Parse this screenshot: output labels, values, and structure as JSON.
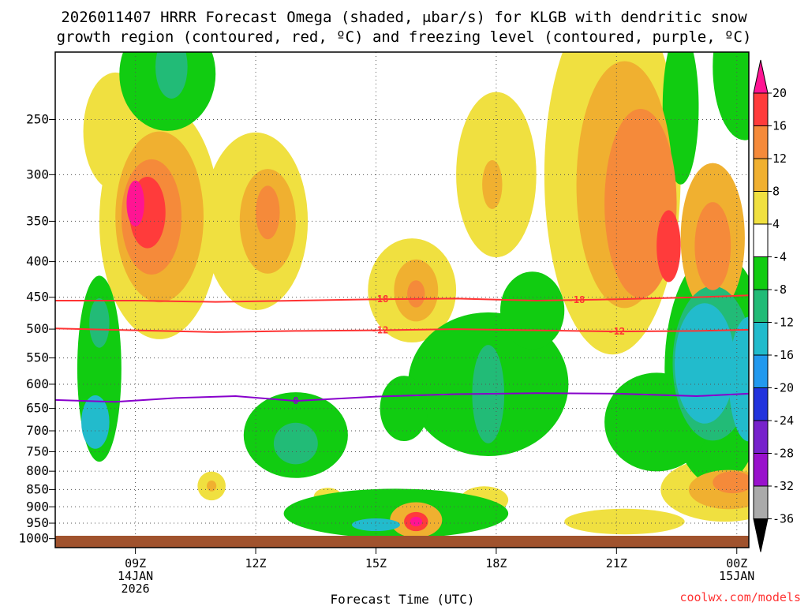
{
  "chart_data": {
    "type": "heatmap",
    "title_line1": "2026011407 HRRR Forecast Omega (shaded, μbar/s) for KLGB with dendritic snow",
    "title_line2": "growth region (contoured, red, ºC) and freezing level (contoured, purple, ºC)",
    "xlabel": "Forecast Time (UTC)",
    "ylabel": "",
    "credit": "coolwx.com/models",
    "x_range_hours": [
      7.0,
      24.3
    ],
    "y_range_hpa": [
      200,
      1030
    ],
    "y_ticks": [
      {
        "value": 250,
        "label": "250"
      },
      {
        "value": 300,
        "label": "300"
      },
      {
        "value": 350,
        "label": "350"
      },
      {
        "value": 400,
        "label": "400"
      },
      {
        "value": 450,
        "label": "450"
      },
      {
        "value": 500,
        "label": "500"
      },
      {
        "value": 550,
        "label": "550"
      },
      {
        "value": 600,
        "label": "600"
      },
      {
        "value": 650,
        "label": "650"
      },
      {
        "value": 700,
        "label": "700"
      },
      {
        "value": 750,
        "label": "750"
      },
      {
        "value": 800,
        "label": "800"
      },
      {
        "value": 850,
        "label": "850"
      },
      {
        "value": 900,
        "label": "900"
      },
      {
        "value": 950,
        "label": "950"
      },
      {
        "value": 1000,
        "label": "1000"
      }
    ],
    "x_ticks": [
      {
        "hour": 9,
        "lines": [
          "09Z",
          "14JAN",
          "2026"
        ]
      },
      {
        "hour": 12,
        "lines": [
          "12Z"
        ]
      },
      {
        "hour": 15,
        "lines": [
          "15Z"
        ]
      },
      {
        "hour": 18,
        "lines": [
          "18Z"
        ]
      },
      {
        "hour": 21,
        "lines": [
          "21Z"
        ]
      },
      {
        "hour": 24,
        "lines": [
          "00Z",
          "15JAN"
        ]
      }
    ],
    "colorbar": {
      "levels": [
        20,
        16,
        12,
        8,
        4,
        -4,
        -8,
        -12,
        -16,
        -20,
        -24,
        -28,
        -32,
        -36
      ],
      "colors": [
        "#ff1493",
        "#ff3b3b",
        "#f58a3a",
        "#f0b030",
        "#f0e040",
        "#ffffff",
        "#11cc11",
        "#22bb77",
        "#22bbcc",
        "#2299ee",
        "#2233dd",
        "#7722cc",
        "#9911cc",
        "#aaaaaa",
        "#000000"
      ]
    },
    "blobs": [
      {
        "h": 9.6,
        "p": 350,
        "rx": 1.5,
        "ry": 130,
        "v": 6
      },
      {
        "h": 9.6,
        "p": 345,
        "rx": 1.1,
        "ry": 95,
        "v": 9
      },
      {
        "h": 9.4,
        "p": 345,
        "rx": 0.75,
        "ry": 65,
        "v": 13
      },
      {
        "h": 9.3,
        "p": 340,
        "rx": 0.45,
        "ry": 40,
        "v": 17
      },
      {
        "h": 9.0,
        "p": 330,
        "rx": 0.22,
        "ry": 25,
        "v": 20
      },
      {
        "h": 8.5,
        "p": 260,
        "rx": 0.8,
        "ry": 50,
        "v": 5
      },
      {
        "h": 12.0,
        "p": 350,
        "rx": 1.3,
        "ry": 100,
        "v": 6
      },
      {
        "h": 12.3,
        "p": 350,
        "rx": 0.7,
        "ry": 60,
        "v": 9
      },
      {
        "h": 12.3,
        "p": 340,
        "rx": 0.3,
        "ry": 30,
        "v": 13
      },
      {
        "h": 15.9,
        "p": 440,
        "rx": 1.1,
        "ry": 75,
        "v": 6
      },
      {
        "h": 16.0,
        "p": 440,
        "rx": 0.55,
        "ry": 45,
        "v": 9
      },
      {
        "h": 16.0,
        "p": 445,
        "rx": 0.22,
        "ry": 20,
        "v": 13
      },
      {
        "h": 18.0,
        "p": 300,
        "rx": 1.0,
        "ry": 80,
        "v": 6
      },
      {
        "h": 17.9,
        "p": 310,
        "rx": 0.25,
        "ry": 25,
        "v": 9
      },
      {
        "h": 20.9,
        "p": 300,
        "rx": 1.7,
        "ry": 160,
        "v": 6
      },
      {
        "h": 21.2,
        "p": 310,
        "rx": 1.2,
        "ry": 120,
        "v": 9
      },
      {
        "h": 21.6,
        "p": 330,
        "rx": 0.9,
        "ry": 100,
        "v": 13
      },
      {
        "h": 22.3,
        "p": 380,
        "rx": 0.3,
        "ry": 45,
        "v": 16
      },
      {
        "h": 23.4,
        "p": 370,
        "rx": 0.8,
        "ry": 90,
        "v": 9
      },
      {
        "h": 23.4,
        "p": 380,
        "rx": 0.45,
        "ry": 55,
        "v": 13
      },
      {
        "h": 23.7,
        "p": 850,
        "rx": 1.6,
        "ry": 90,
        "v": 6
      },
      {
        "h": 23.8,
        "p": 850,
        "rx": 1.0,
        "ry": 55,
        "v": 9
      },
      {
        "h": 23.9,
        "p": 830,
        "rx": 0.5,
        "ry": 30,
        "v": 13
      },
      {
        "h": 21.2,
        "p": 945,
        "rx": 1.5,
        "ry": 40,
        "v": 6
      },
      {
        "h": 16.0,
        "p": 940,
        "rx": 0.65,
        "ry": 55,
        "v": 9
      },
      {
        "h": 16.0,
        "p": 945,
        "rx": 0.3,
        "ry": 30,
        "v": 16
      },
      {
        "h": 16.0,
        "p": 945,
        "rx": 0.15,
        "ry": 15,
        "v": 20
      },
      {
        "h": 17.7,
        "p": 880,
        "rx": 0.6,
        "ry": 40,
        "v": 6
      },
      {
        "h": 10.9,
        "p": 840,
        "rx": 0.35,
        "ry": 40,
        "v": 6
      },
      {
        "h": 10.9,
        "p": 840,
        "rx": 0.12,
        "ry": 15,
        "v": 9
      },
      {
        "h": 13.8,
        "p": 870,
        "rx": 0.35,
        "ry": 25,
        "v": 6
      },
      {
        "h": 8.1,
        "p": 570,
        "rx": 0.55,
        "ry": 170,
        "v": -6
      },
      {
        "h": 8.0,
        "p": 680,
        "rx": 0.35,
        "ry": 60,
        "v": -13
      },
      {
        "h": 8.1,
        "p": 490,
        "rx": 0.25,
        "ry": 40,
        "v": -10
      },
      {
        "h": 9.8,
        "p": 215,
        "rx": 1.2,
        "ry": 40,
        "v": -6
      },
      {
        "h": 9.9,
        "p": 210,
        "rx": 0.4,
        "ry": 22,
        "v": -10
      },
      {
        "h": 13.0,
        "p": 710,
        "rx": 1.3,
        "ry": 100,
        "v": -6
      },
      {
        "h": 13.0,
        "p": 730,
        "rx": 0.55,
        "ry": 50,
        "v": -10
      },
      {
        "h": 15.5,
        "p": 920,
        "rx": 2.8,
        "ry": 75,
        "v": -6
      },
      {
        "h": 15.0,
        "p": 955,
        "rx": 0.6,
        "ry": 20,
        "v": -13
      },
      {
        "h": 17.8,
        "p": 600,
        "rx": 2.0,
        "ry": 140,
        "v": -6
      },
      {
        "h": 17.8,
        "p": 620,
        "rx": 0.4,
        "ry": 100,
        "v": -10
      },
      {
        "h": 18.9,
        "p": 470,
        "rx": 0.8,
        "ry": 60,
        "v": -6
      },
      {
        "h": 23.5,
        "p": 570,
        "rx": 1.3,
        "ry": 210,
        "v": -6
      },
      {
        "h": 23.4,
        "p": 560,
        "rx": 1.0,
        "ry": 140,
        "v": -10
      },
      {
        "h": 23.2,
        "p": 560,
        "rx": 0.75,
        "ry": 110,
        "v": -14
      },
      {
        "h": 24.3,
        "p": 590,
        "rx": 0.5,
        "ry": 120,
        "v": -14
      },
      {
        "h": 22.0,
        "p": 680,
        "rx": 1.3,
        "ry": 110,
        "v": -6
      },
      {
        "h": 24.2,
        "p": 210,
        "rx": 0.8,
        "ry": 50,
        "v": -6
      },
      {
        "h": 22.6,
        "p": 240,
        "rx": 0.45,
        "ry": 60,
        "v": -6
      },
      {
        "h": 15.7,
        "p": 650,
        "rx": 0.6,
        "ry": 70,
        "v": -6
      }
    ],
    "contours": [
      {
        "name": "dgz-minus-18",
        "label": "-18",
        "color": "#ff3333",
        "label_hour": 15.1,
        "label_hour2": 20.0,
        "h": [
          7.0,
          9.0,
          11.0,
          13.0,
          15.0,
          17.0,
          19.0,
          21.0,
          23.0,
          24.3
        ],
        "p": [
          455,
          455,
          457,
          455,
          453,
          452,
          455,
          453,
          450,
          447
        ]
      },
      {
        "name": "dgz-minus-12",
        "label": "-12",
        "color": "#ff3333",
        "label_hour": 15.1,
        "label_hour2": 21.0,
        "h": [
          7.0,
          9.0,
          11.0,
          13.0,
          15.0,
          17.0,
          19.0,
          21.0,
          23.0,
          24.3
        ],
        "p": [
          499,
          502,
          505,
          503,
          502,
          500,
          502,
          504,
          503,
          501
        ]
      },
      {
        "name": "freezing-level-0",
        "label": "0",
        "color": "#8800cc",
        "label_hour": 13.0,
        "label_hour2": null,
        "h": [
          7.0,
          8.5,
          10.0,
          11.5,
          13.0,
          15.0,
          17.0,
          19.0,
          21.0,
          23.0,
          24.3
        ],
        "p": [
          632,
          636,
          628,
          624,
          634,
          625,
          620,
          618,
          619,
          624,
          619
        ]
      }
    ]
  }
}
